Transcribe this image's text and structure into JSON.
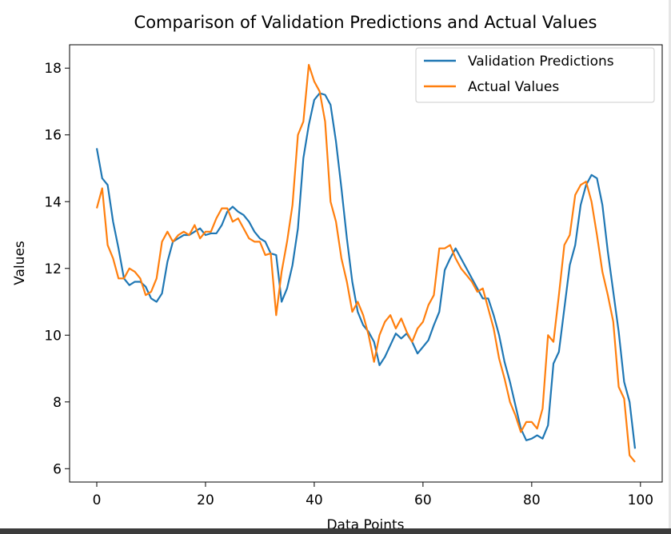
{
  "chart_data": {
    "type": "line",
    "title": "Comparison of Validation Predictions and Actual Values",
    "xlabel": "Data Points",
    "ylabel": "Values",
    "xlim": [
      -5,
      104
    ],
    "ylim": [
      5.6,
      18.7
    ],
    "xticks": [
      0,
      20,
      40,
      60,
      80,
      100
    ],
    "yticks": [
      6,
      8,
      10,
      12,
      14,
      16,
      18
    ],
    "grid": false,
    "legend_position": "top-right",
    "series": [
      {
        "name": "Validation Predictions",
        "color": "#1f77b4",
        "x": [
          0,
          1,
          2,
          3,
          4,
          5,
          6,
          7,
          8,
          9,
          10,
          11,
          12,
          13,
          14,
          15,
          16,
          17,
          18,
          19,
          20,
          21,
          22,
          23,
          24,
          25,
          26,
          27,
          28,
          29,
          30,
          31,
          32,
          33,
          34,
          35,
          36,
          37,
          38,
          39,
          40,
          41,
          42,
          43,
          44,
          45,
          46,
          47,
          48,
          49,
          50,
          51,
          52,
          53,
          54,
          55,
          56,
          57,
          58,
          59,
          60,
          61,
          62,
          63,
          64,
          65,
          66,
          67,
          68,
          69,
          70,
          71,
          72,
          73,
          74,
          75,
          76,
          77,
          78,
          79,
          80,
          81,
          82,
          83,
          84,
          85,
          86,
          87,
          88,
          89,
          90,
          91,
          92,
          93,
          94,
          95,
          96,
          97,
          98,
          99
        ],
        "values": [
          15.6,
          14.7,
          14.5,
          13.4,
          12.6,
          11.7,
          11.5,
          11.6,
          11.6,
          11.45,
          11.1,
          11.0,
          11.25,
          12.2,
          12.8,
          12.9,
          13.0,
          13.0,
          13.1,
          13.2,
          13.0,
          13.05,
          13.05,
          13.3,
          13.7,
          13.85,
          13.7,
          13.6,
          13.4,
          13.1,
          12.9,
          12.8,
          12.45,
          12.4,
          11.0,
          11.4,
          12.1,
          13.2,
          15.3,
          16.3,
          17.05,
          17.25,
          17.2,
          16.9,
          15.8,
          14.4,
          12.9,
          11.6,
          10.7,
          10.3,
          10.1,
          9.8,
          9.1,
          9.35,
          9.7,
          10.05,
          9.9,
          10.05,
          9.8,
          9.45,
          9.65,
          9.85,
          10.3,
          10.7,
          11.95,
          12.3,
          12.6,
          12.3,
          12.0,
          11.7,
          11.4,
          11.1,
          11.1,
          10.6,
          10.0,
          9.2,
          8.6,
          7.9,
          7.2,
          6.85,
          6.9,
          7.0,
          6.9,
          7.3,
          9.15,
          9.5,
          10.8,
          12.1,
          12.7,
          13.9,
          14.5,
          14.8,
          14.7,
          13.9,
          12.5,
          11.3,
          10.1,
          8.6,
          8.0,
          6.6
        ]
      },
      {
        "name": "Actual Values",
        "color": "#ff7f0e",
        "x": [
          0,
          1,
          2,
          3,
          4,
          5,
          6,
          7,
          8,
          9,
          10,
          11,
          12,
          13,
          14,
          15,
          16,
          17,
          18,
          19,
          20,
          21,
          22,
          23,
          24,
          25,
          26,
          27,
          28,
          29,
          30,
          31,
          32,
          33,
          34,
          35,
          36,
          37,
          38,
          39,
          40,
          41,
          42,
          43,
          44,
          45,
          46,
          47,
          48,
          49,
          50,
          51,
          52,
          53,
          54,
          55,
          56,
          57,
          58,
          59,
          60,
          61,
          62,
          63,
          64,
          65,
          66,
          67,
          68,
          69,
          70,
          71,
          72,
          73,
          74,
          75,
          76,
          77,
          78,
          79,
          80,
          81,
          82,
          83,
          84,
          85,
          86,
          87,
          88,
          89,
          90,
          91,
          92,
          93,
          94,
          95,
          96,
          97,
          98,
          99
        ],
        "values": [
          13.8,
          14.4,
          12.7,
          12.3,
          11.7,
          11.7,
          12.0,
          11.9,
          11.7,
          11.2,
          11.3,
          11.7,
          12.8,
          13.1,
          12.8,
          13.0,
          13.1,
          13.0,
          13.3,
          12.9,
          13.1,
          13.1,
          13.5,
          13.8,
          13.8,
          13.4,
          13.5,
          13.2,
          12.9,
          12.8,
          12.8,
          12.4,
          12.45,
          10.6,
          11.9,
          12.8,
          13.9,
          16.0,
          16.4,
          18.1,
          17.6,
          17.3,
          16.4,
          14.0,
          13.4,
          12.3,
          11.6,
          10.7,
          11.0,
          10.6,
          10.0,
          9.2,
          10.0,
          10.4,
          10.6,
          10.2,
          10.5,
          10.1,
          9.8,
          10.2,
          10.4,
          10.9,
          11.2,
          12.6,
          12.6,
          12.7,
          12.3,
          12.0,
          11.8,
          11.6,
          11.3,
          11.4,
          10.8,
          10.2,
          9.3,
          8.7,
          8.0,
          7.6,
          7.1,
          7.4,
          7.4,
          7.2,
          7.8,
          10.0,
          9.8,
          11.2,
          12.7,
          13.0,
          14.2,
          14.5,
          14.6,
          14.0,
          13.0,
          11.9,
          11.2,
          10.4,
          8.45,
          8.1,
          6.4,
          6.2
        ]
      }
    ]
  }
}
